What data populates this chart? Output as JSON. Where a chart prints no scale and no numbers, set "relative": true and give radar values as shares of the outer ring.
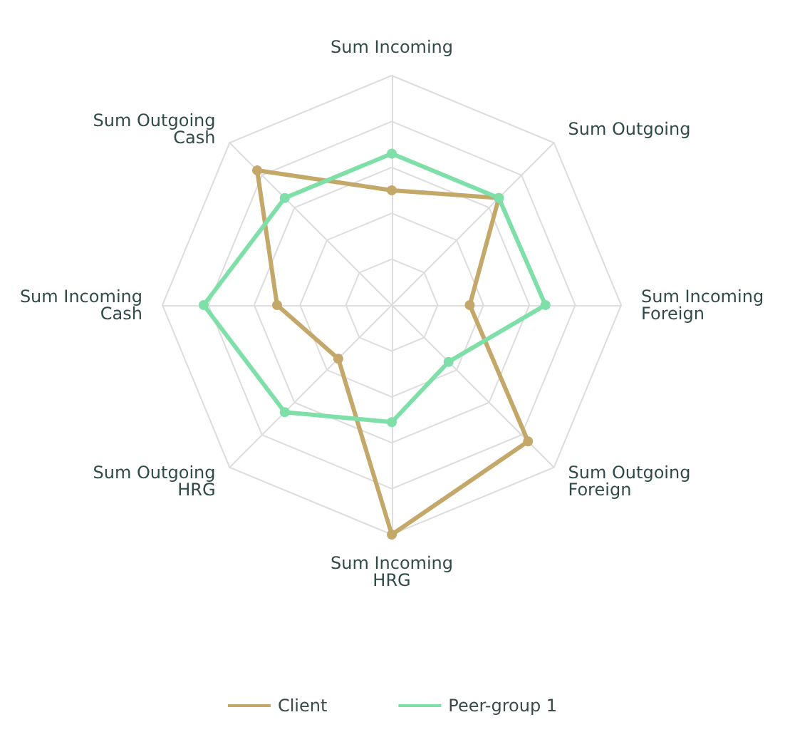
{
  "chart_data": {
    "type": "radar",
    "relative": true,
    "categories": [
      "Sum Incoming",
      "Sum Outgoing",
      "Sum Incoming Foreign",
      "Sum Outgoing Foreign",
      "Sum Incoming HRG",
      "Sum Outgoing HRG",
      "Sum Incoming Cash",
      "Sum Outgoing Cash"
    ],
    "series": [
      {
        "name": "Client",
        "color": "#c4a86a",
        "values": [
          0.5,
          0.66,
          0.34,
          0.84,
          1,
          0.33,
          0.5,
          0.83
        ]
      },
      {
        "name": "Peer-group 1",
        "color": "#7ee0a8",
        "values": [
          0.66,
          0.66,
          0.67,
          0.35,
          0.51,
          0.66,
          0.82,
          0.66
        ]
      }
    ],
    "legend": "bottom",
    "marker": "circle",
    "line_style": "solid"
  }
}
